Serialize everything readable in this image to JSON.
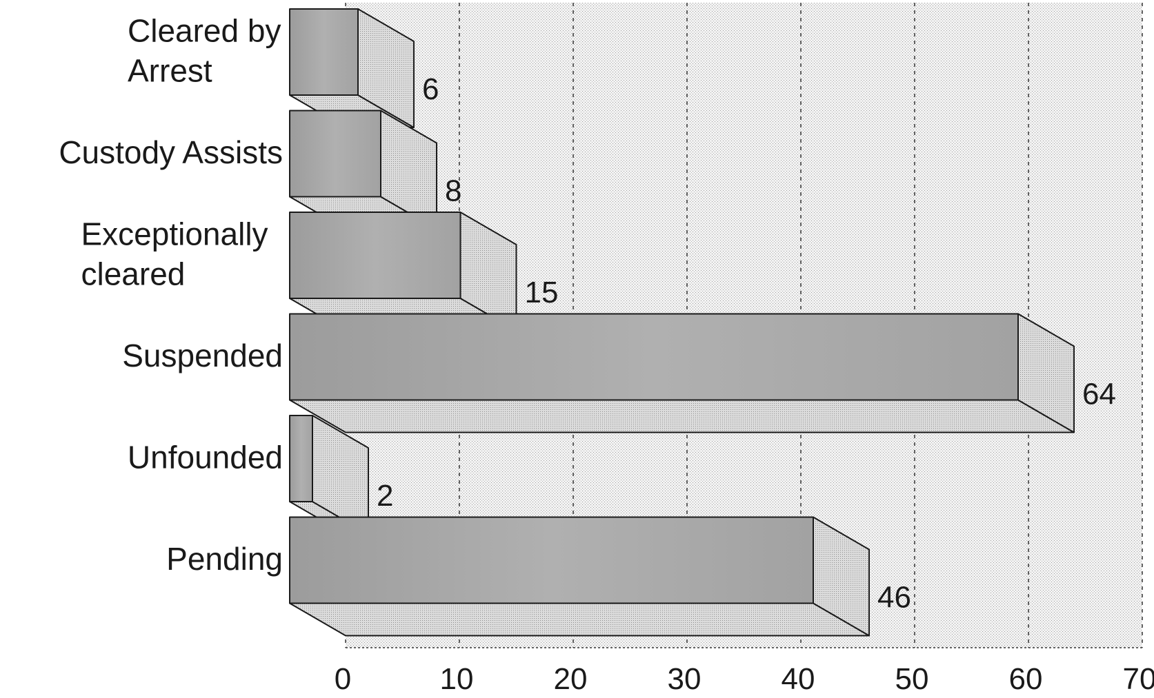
{
  "chart_data": {
    "type": "bar",
    "orientation": "horizontal",
    "style": "3d",
    "categories": [
      "Cleared by Arrest",
      "Custody Assists",
      "Exceptionally cleared",
      "Suspended",
      "Unfounded",
      "Pending"
    ],
    "category_label_lines": [
      [
        "Cleared by",
        "Arrest"
      ],
      [
        "Custody Assists"
      ],
      [
        "Exceptionally",
        "cleared"
      ],
      [
        "Suspended"
      ],
      [
        "Unfounded"
      ],
      [
        "Pending"
      ]
    ],
    "values": [
      6,
      8,
      15,
      64,
      2,
      46
    ],
    "data_labels": [
      "6",
      "8",
      "15",
      "64",
      "2",
      "46"
    ],
    "xlim": [
      0,
      70
    ],
    "x_ticks": [
      "0",
      "10",
      "20",
      "30",
      "40",
      "50",
      "60",
      "70"
    ],
    "x_tick_values": [
      0,
      10,
      20,
      30,
      40,
      50,
      60,
      70
    ],
    "grid": true,
    "legend": "none",
    "title": "",
    "xlabel": "",
    "ylabel": "",
    "colors": {
      "bar_front": "#a4a4a4",
      "bar_side": "#d6d6d6",
      "bar_bottom": "#dddddd",
      "wall": "#eeeeee",
      "outline": "#1a1a1a"
    }
  }
}
